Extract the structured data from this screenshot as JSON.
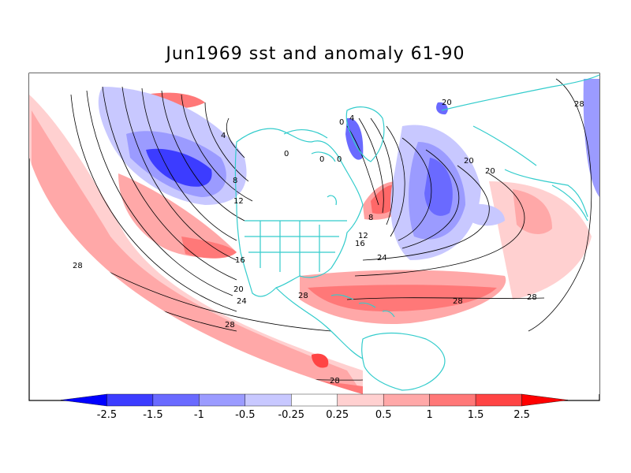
{
  "title": "Jun1969 sst and anomaly 61-90",
  "colorbar": {
    "colors": [
      "#0000ff",
      "#3c3cff",
      "#6a6aff",
      "#9b9bff",
      "#c8c8ff",
      "#ffffff",
      "#ffd0d0",
      "#ffa8a8",
      "#ff7878",
      "#ff4444",
      "#ff0000"
    ],
    "labels": [
      "-2.5",
      "-1.5",
      "-1",
      "-0.5",
      "-0.25",
      "0.25",
      "0.5",
      "1",
      "1.5",
      "2.5"
    ]
  },
  "contour_labels": [
    "4",
    "8",
    "12",
    "16",
    "20",
    "24",
    "28",
    "28",
    "28",
    "28",
    "0",
    "0",
    "0",
    "0",
    "4",
    "8",
    "12",
    "16",
    "20",
    "20",
    "20",
    "24",
    "28",
    "28",
    "28"
  ],
  "colors": {
    "coast": "#33cccc",
    "contour": "#000000",
    "neg_anomaly": "#6a6aff",
    "pos_anomaly": "#ff7878"
  }
}
